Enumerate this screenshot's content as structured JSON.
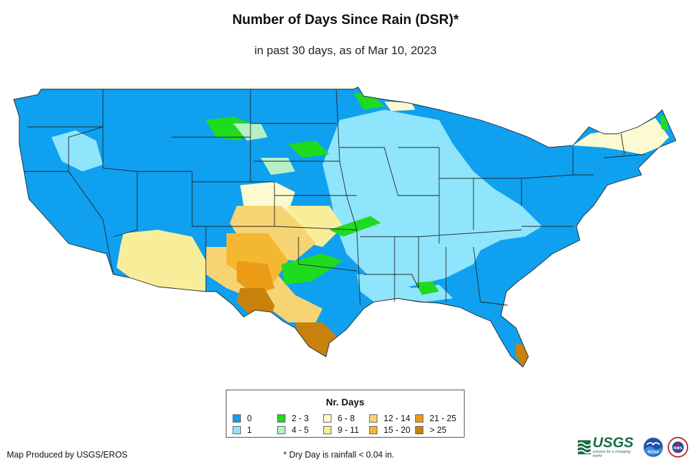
{
  "header": {
    "title": "Number of Days Since Rain (DSR)*",
    "subtitle": "in past 30 days, as of Mar 10, 2023"
  },
  "legend": {
    "title": "Nr. Days",
    "items": [
      {
        "label": "0",
        "color": "#0fa0f0"
      },
      {
        "label": "1",
        "color": "#8fe5fb"
      },
      {
        "label": "2 - 3",
        "color": "#1fdb1f"
      },
      {
        "label": "4 - 5",
        "color": "#b6f0c6"
      },
      {
        "label": "6 - 8",
        "color": "#fbfad0"
      },
      {
        "label": "9 - 11",
        "color": "#f8ee9a"
      },
      {
        "label": "12 - 14",
        "color": "#f6d474"
      },
      {
        "label": "15 - 20",
        "color": "#f4b731"
      },
      {
        "label": "21 - 25",
        "color": "#ec9b17"
      },
      {
        "label": "> 25",
        "color": "#c9810e"
      }
    ]
  },
  "footer": {
    "credit": "Map Produced by USGS/EROS",
    "note": "* Dry Day is rainfall < 0.04 in."
  },
  "logos": {
    "usgs_text": "USGS",
    "usgs_tagline": "science for a changing world",
    "noaa_text": "NOAA",
    "nws_text": "NWS"
  }
}
